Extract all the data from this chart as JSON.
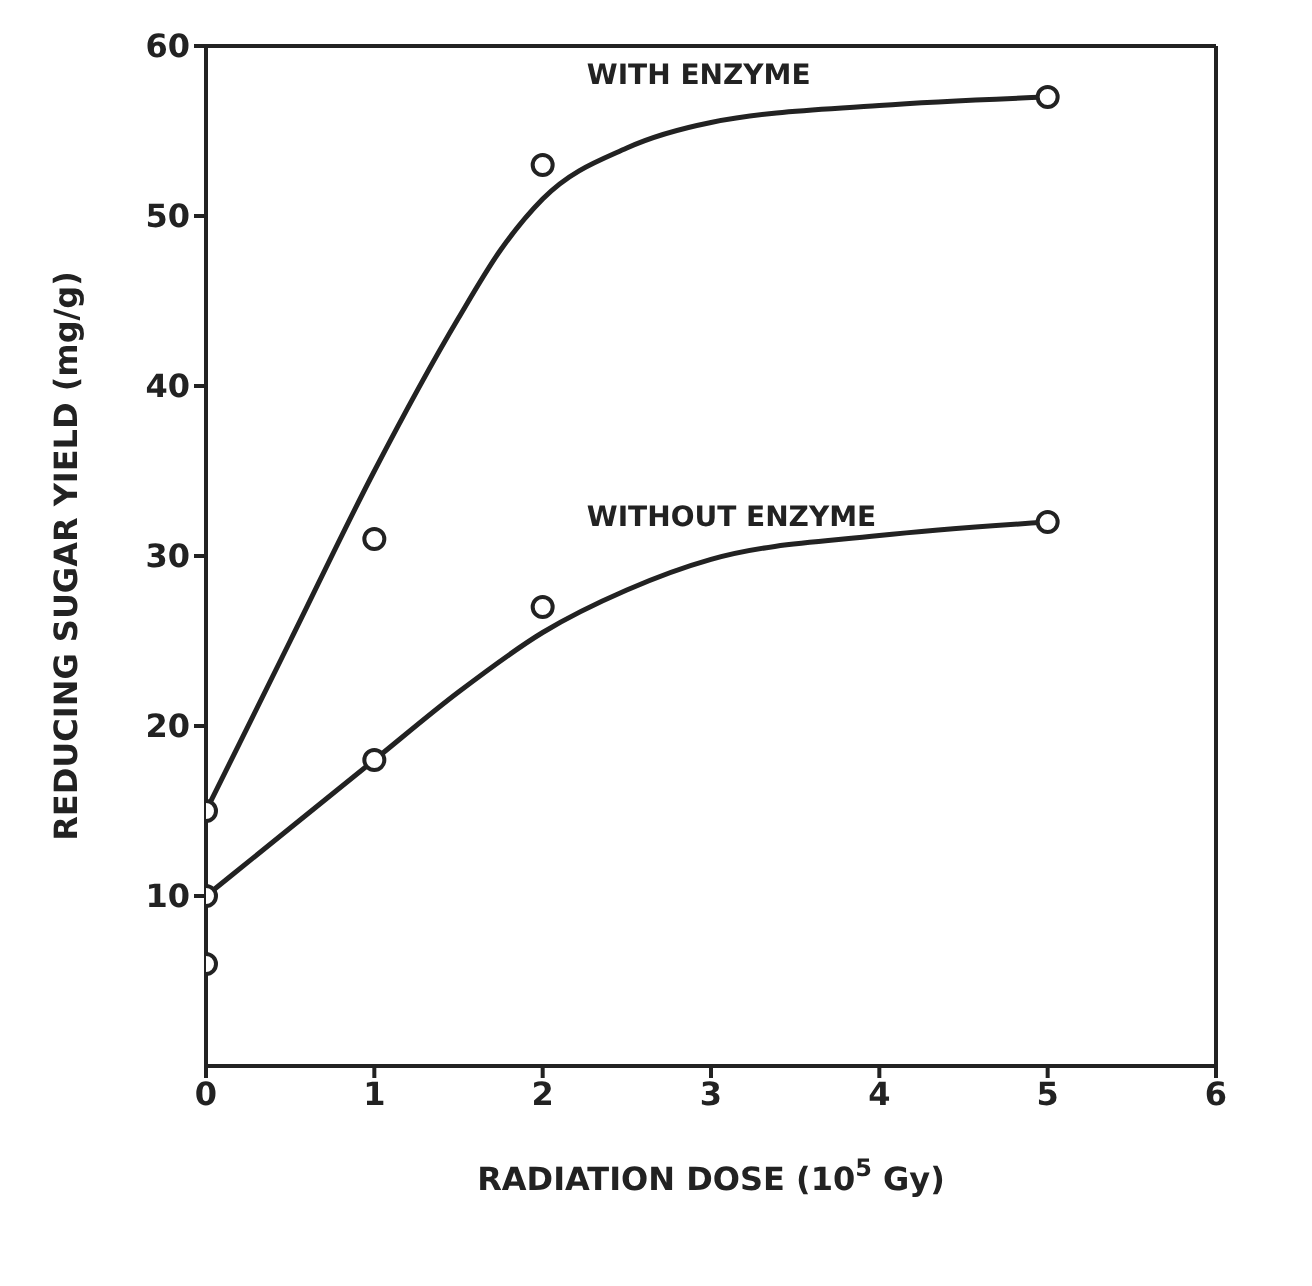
{
  "chart_data": {
    "type": "line",
    "xlabel": "RADIATION DOSE (10$^{5}$ Gy)",
    "ylabel": "REDUCING SUGAR YIELD (mg/g)",
    "xlim": [
      0,
      6
    ],
    "xticks": [
      0,
      1,
      2,
      3,
      4,
      5,
      6
    ],
    "ylim": [
      0,
      60
    ],
    "yticks": [
      10,
      20,
      30,
      40,
      50,
      60
    ],
    "grid": false,
    "series": [
      {
        "name": "WITH ENZYME",
        "color": "#222222",
        "marker": "none",
        "line_style": "solid",
        "x": [
          0,
          0.5,
          1,
          1.5,
          1.75,
          2,
          2.5,
          3,
          4,
          5
        ],
        "values": [
          15,
          25,
          35,
          44,
          48,
          51,
          54,
          55.5,
          56.5,
          57
        ]
      },
      {
        "name": "WITHOUT ENZYME",
        "color": "#222222",
        "marker": "none",
        "line_style": "solid",
        "x": [
          0,
          0.5,
          1,
          1.5,
          2,
          2.5,
          3,
          4,
          5
        ],
        "values": [
          10,
          14,
          18,
          22,
          25.5,
          28,
          29.8,
          31.2,
          32
        ]
      },
      {
        "type": "scatter",
        "color": "#222222",
        "marker": "circle",
        "x": [
          0,
          1,
          2,
          5
        ],
        "values": [
          15,
          31,
          53,
          57
        ]
      },
      {
        "type": "scatter",
        "color": "#222222",
        "marker": "circle",
        "x": [
          0,
          0,
          1,
          2,
          5
        ],
        "values": [
          10,
          6,
          18,
          27,
          32
        ]
      }
    ]
  }
}
